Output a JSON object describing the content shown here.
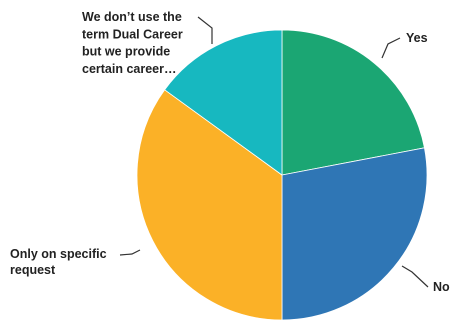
{
  "chart_data": {
    "type": "pie",
    "title": "",
    "slices": [
      {
        "label": "Yes",
        "value": 22,
        "color": "#1ba673"
      },
      {
        "label": "No",
        "value": 28,
        "color": "#2f76b5"
      },
      {
        "label": "Only on specific request",
        "value": 35,
        "color": "#fbb127"
      },
      {
        "label": "We don’t use the term Dual Career but we provide certain career…",
        "value": 15,
        "color": "#17b8c0"
      }
    ],
    "start_angle_deg": 0,
    "direction": "clockwise",
    "legend": "none",
    "label_lines": {
      "Yes": [
        "Yes"
      ],
      "No": [
        "No"
      ],
      "Only on specific request": [
        "Only on specific",
        "request"
      ],
      "We don’t use the term Dual Career but we provide certain career…": [
        "We don’t use the",
        "term Dual Career",
        "but we provide",
        "certain career…"
      ]
    }
  }
}
